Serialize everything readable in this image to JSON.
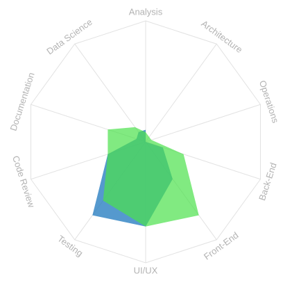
{
  "chart_data": {
    "type": "radar",
    "title": "",
    "axes": [
      "Analysis",
      "Architecture",
      "Operations",
      "Back-End",
      "Front-End",
      "UI/UX",
      "Testing",
      "Code Review",
      "Documentation",
      "Data Science"
    ],
    "max": 10,
    "grid": true,
    "legend": "none",
    "series": [
      {
        "color": "#2a7fc2",
        "opacity": 0.8,
        "values": [
          1,
          0,
          0,
          1.5,
          3.8,
          7,
          7.5,
          3.3,
          0.8,
          1.0
        ]
      },
      {
        "color": "#4be14b",
        "opacity": 0.7,
        "values": [
          0.8,
          0.5,
          0.5,
          3.3,
          7.5,
          7,
          6,
          3.3,
          3.3,
          1.5
        ]
      }
    ]
  }
}
